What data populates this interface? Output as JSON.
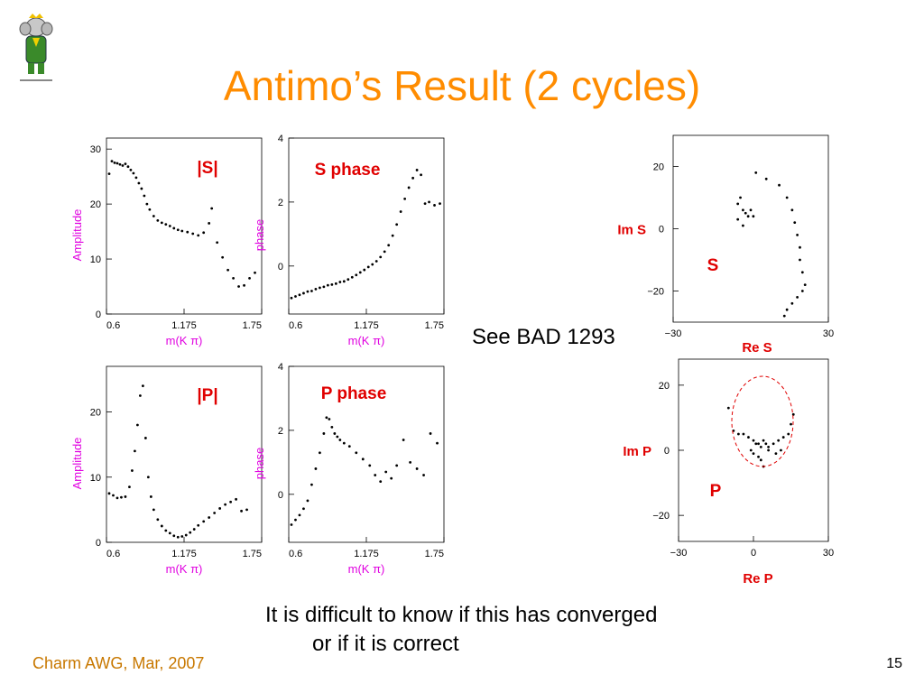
{
  "slide": {
    "title": "Antimo’s Result (2 cycles)",
    "see_ref": "See BAD 1293",
    "note_line1": "It is difficult to know if this has converged",
    "note_line2": "or if it is correct",
    "footer_left": "Charm AWG, Mar, 2007",
    "page_number": "15",
    "colors": {
      "title": "#ff8c00",
      "label_red": "#e00000",
      "axis_label": "#e000e0",
      "footer": "#c87800"
    }
  },
  "chart_data": [
    {
      "id": "s_amp",
      "type": "scatter",
      "title": "|S|",
      "xlabel": "m(K π)",
      "ylabel": "Amplitude",
      "xlim": [
        0.6,
        1.75
      ],
      "ylim": [
        0,
        32
      ],
      "xticks": [
        "0.6",
        "1.175",
        "1.75"
      ],
      "yticks": [
        "0",
        "10",
        "20",
        "30"
      ],
      "points": [
        [
          0.62,
          25.5
        ],
        [
          0.64,
          27.8
        ],
        [
          0.66,
          27.5
        ],
        [
          0.68,
          27.4
        ],
        [
          0.7,
          27.2
        ],
        [
          0.72,
          27.0
        ],
        [
          0.74,
          27.3
        ],
        [
          0.76,
          26.8
        ],
        [
          0.78,
          26.2
        ],
        [
          0.8,
          25.6
        ],
        [
          0.82,
          24.8
        ],
        [
          0.84,
          23.8
        ],
        [
          0.86,
          22.8
        ],
        [
          0.88,
          21.5
        ],
        [
          0.9,
          20.0
        ],
        [
          0.92,
          19.0
        ],
        [
          0.95,
          17.8
        ],
        [
          0.98,
          17.0
        ],
        [
          1.01,
          16.6
        ],
        [
          1.04,
          16.3
        ],
        [
          1.07,
          16.0
        ],
        [
          1.1,
          15.6
        ],
        [
          1.13,
          15.3
        ],
        [
          1.16,
          15.1
        ],
        [
          1.2,
          14.9
        ],
        [
          1.24,
          14.6
        ],
        [
          1.28,
          14.3
        ],
        [
          1.32,
          14.8
        ],
        [
          1.36,
          16.5
        ],
        [
          1.38,
          19.2
        ],
        [
          1.42,
          13.0
        ],
        [
          1.46,
          10.3
        ],
        [
          1.5,
          8.0
        ],
        [
          1.54,
          6.5
        ],
        [
          1.58,
          5.0
        ],
        [
          1.62,
          5.2
        ],
        [
          1.66,
          6.5
        ],
        [
          1.7,
          7.5
        ]
      ]
    },
    {
      "id": "s_phase",
      "type": "scatter",
      "title": "S phase",
      "xlabel": "m(K π)",
      "ylabel": "phase",
      "xlim": [
        0.6,
        1.75
      ],
      "ylim": [
        -1.5,
        4
      ],
      "xticks": [
        "0.6",
        "1.175",
        "1.75"
      ],
      "yticks": [
        "0",
        "2",
        "4"
      ],
      "points": [
        [
          0.62,
          -1.0
        ],
        [
          0.65,
          -0.95
        ],
        [
          0.68,
          -0.9
        ],
        [
          0.71,
          -0.85
        ],
        [
          0.74,
          -0.8
        ],
        [
          0.77,
          -0.78
        ],
        [
          0.8,
          -0.72
        ],
        [
          0.83,
          -0.68
        ],
        [
          0.86,
          -0.65
        ],
        [
          0.89,
          -0.6
        ],
        [
          0.92,
          -0.58
        ],
        [
          0.95,
          -0.55
        ],
        [
          0.98,
          -0.5
        ],
        [
          1.01,
          -0.48
        ],
        [
          1.04,
          -0.42
        ],
        [
          1.07,
          -0.35
        ],
        [
          1.1,
          -0.28
        ],
        [
          1.13,
          -0.2
        ],
        [
          1.16,
          -0.12
        ],
        [
          1.19,
          -0.03
        ],
        [
          1.22,
          0.05
        ],
        [
          1.25,
          0.15
        ],
        [
          1.28,
          0.28
        ],
        [
          1.31,
          0.45
        ],
        [
          1.34,
          0.65
        ],
        [
          1.37,
          0.95
        ],
        [
          1.4,
          1.3
        ],
        [
          1.43,
          1.7
        ],
        [
          1.46,
          2.1
        ],
        [
          1.49,
          2.45
        ],
        [
          1.52,
          2.75
        ],
        [
          1.55,
          3.0
        ],
        [
          1.58,
          2.85
        ],
        [
          1.61,
          1.95
        ],
        [
          1.64,
          2.0
        ],
        [
          1.68,
          1.9
        ],
        [
          1.72,
          1.95
        ]
      ]
    },
    {
      "id": "p_amp",
      "type": "scatter",
      "title": "|P|",
      "xlabel": "m(K π)",
      "ylabel": "Amplitude",
      "xlim": [
        0.6,
        1.75
      ],
      "ylim": [
        0,
        27
      ],
      "xticks": [
        "0.6",
        "1.175",
        "1.75"
      ],
      "yticks": [
        "0",
        "10",
        "20"
      ],
      "points": [
        [
          0.62,
          7.5
        ],
        [
          0.65,
          7.2
        ],
        [
          0.68,
          6.8
        ],
        [
          0.71,
          6.9
        ],
        [
          0.74,
          7.0
        ],
        [
          0.77,
          8.5
        ],
        [
          0.79,
          11.0
        ],
        [
          0.81,
          14.0
        ],
        [
          0.83,
          18.0
        ],
        [
          0.85,
          22.5
        ],
        [
          0.87,
          24.0
        ],
        [
          0.89,
          16.0
        ],
        [
          0.91,
          10.0
        ],
        [
          0.93,
          7.0
        ],
        [
          0.95,
          5.0
        ],
        [
          0.98,
          3.5
        ],
        [
          1.01,
          2.5
        ],
        [
          1.04,
          1.8
        ],
        [
          1.07,
          1.4
        ],
        [
          1.1,
          1.0
        ],
        [
          1.13,
          0.8
        ],
        [
          1.16,
          0.9
        ],
        [
          1.19,
          1.1
        ],
        [
          1.22,
          1.5
        ],
        [
          1.25,
          2.0
        ],
        [
          1.28,
          2.6
        ],
        [
          1.32,
          3.2
        ],
        [
          1.36,
          3.8
        ],
        [
          1.4,
          4.5
        ],
        [
          1.44,
          5.2
        ],
        [
          1.48,
          5.8
        ],
        [
          1.52,
          6.2
        ],
        [
          1.56,
          6.6
        ],
        [
          1.6,
          4.8
        ],
        [
          1.64,
          5.0
        ]
      ]
    },
    {
      "id": "p_phase",
      "type": "scatter",
      "title": "P phase",
      "xlabel": "m(K π)",
      "ylabel": "phase",
      "xlim": [
        0.6,
        1.75
      ],
      "ylim": [
        -1.5,
        4
      ],
      "xticks": [
        "0.6",
        "1.175",
        "1.75"
      ],
      "yticks": [
        "0",
        "2",
        "4"
      ],
      "points": [
        [
          0.62,
          -0.95
        ],
        [
          0.65,
          -0.8
        ],
        [
          0.68,
          -0.65
        ],
        [
          0.71,
          -0.45
        ],
        [
          0.74,
          -0.2
        ],
        [
          0.77,
          0.3
        ],
        [
          0.8,
          0.8
        ],
        [
          0.83,
          1.3
        ],
        [
          0.86,
          1.9
        ],
        [
          0.88,
          2.4
        ],
        [
          0.9,
          2.35
        ],
        [
          0.92,
          2.1
        ],
        [
          0.94,
          1.9
        ],
        [
          0.96,
          1.8
        ],
        [
          0.98,
          1.7
        ],
        [
          1.01,
          1.6
        ],
        [
          1.05,
          1.5
        ],
        [
          1.1,
          1.3
        ],
        [
          1.15,
          1.1
        ],
        [
          1.2,
          0.9
        ],
        [
          1.24,
          0.6
        ],
        [
          1.28,
          0.4
        ],
        [
          1.32,
          0.7
        ],
        [
          1.36,
          0.5
        ],
        [
          1.4,
          0.9
        ],
        [
          1.45,
          1.7
        ],
        [
          1.5,
          1.0
        ],
        [
          1.55,
          0.8
        ],
        [
          1.6,
          0.6
        ],
        [
          1.65,
          1.9
        ],
        [
          1.7,
          1.6
        ]
      ]
    },
    {
      "id": "s_argand",
      "type": "scatter",
      "title": "S",
      "xlabel": "Re S",
      "ylabel": "Im S",
      "xlim": [
        -30,
        30
      ],
      "ylim": [
        -30,
        30
      ],
      "xticks": [
        "−30",
        "30"
      ],
      "yticks": [
        "20",
        "0",
        "−20"
      ],
      "points": [
        [
          -5,
          8
        ],
        [
          -4,
          10
        ],
        [
          -3,
          6
        ],
        [
          -2,
          5
        ],
        [
          -1,
          4
        ],
        [
          0,
          6
        ],
        [
          1,
          4
        ],
        [
          -5,
          3
        ],
        [
          -3,
          1
        ],
        [
          2,
          18
        ],
        [
          6,
          16
        ],
        [
          11,
          14
        ],
        [
          14,
          10
        ],
        [
          16,
          6
        ],
        [
          17,
          2
        ],
        [
          18,
          -2
        ],
        [
          19,
          -6
        ],
        [
          19,
          -10
        ],
        [
          20,
          -14
        ],
        [
          21,
          -18
        ],
        [
          20,
          -20
        ],
        [
          18,
          -22
        ],
        [
          16,
          -24
        ],
        [
          14,
          -26
        ],
        [
          13,
          -28
        ]
      ]
    },
    {
      "id": "p_argand",
      "type": "scatter",
      "title": "P",
      "xlabel": "Re P",
      "ylabel": "Im P",
      "xlim": [
        -30,
        30
      ],
      "ylim": [
        -28,
        28
      ],
      "xticks": [
        "−30",
        "0",
        "30"
      ],
      "yticks": [
        "20",
        "0",
        "−20"
      ],
      "points": [
        [
          -10,
          13
        ],
        [
          -8,
          6
        ],
        [
          -6,
          5
        ],
        [
          -4,
          5
        ],
        [
          -2,
          4
        ],
        [
          0,
          3
        ],
        [
          1,
          2
        ],
        [
          2,
          2
        ],
        [
          3,
          1
        ],
        [
          4,
          3
        ],
        [
          5,
          2
        ],
        [
          6,
          1
        ],
        [
          -1,
          0
        ],
        [
          0,
          -1
        ],
        [
          2,
          -2
        ],
        [
          3,
          -3
        ],
        [
          4,
          -5
        ],
        [
          6,
          0
        ],
        [
          8,
          2
        ],
        [
          10,
          3
        ],
        [
          12,
          4
        ],
        [
          14,
          5
        ],
        [
          15,
          8
        ],
        [
          16,
          11
        ],
        [
          11,
          0
        ],
        [
          9,
          -1
        ]
      ]
    }
  ]
}
